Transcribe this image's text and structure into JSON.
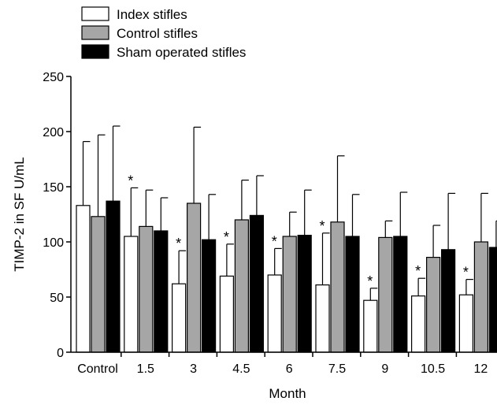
{
  "chart_data": {
    "type": "bar",
    "title": "",
    "xlabel": "Month",
    "ylabel": "TIMP-2 in SF U/mL",
    "ylim": [
      0,
      250
    ],
    "yticks": [
      0,
      50,
      100,
      150,
      200,
      250
    ],
    "categories": [
      "Control",
      "1.5",
      "3",
      "4.5",
      "6",
      "7.5",
      "9",
      "10.5",
      "12"
    ],
    "legend_position": "top-left",
    "grid": false,
    "error_bars": "upper only",
    "series": [
      {
        "name": "Index stifles",
        "color": "#ffffff",
        "values": [
          133,
          105,
          62,
          69,
          70,
          61,
          47,
          51,
          52
        ],
        "errors": [
          58,
          44,
          30,
          29,
          24,
          47,
          11,
          16,
          14
        ],
        "significance": [
          "",
          "*",
          "*",
          "*",
          "*",
          "*",
          "*",
          "*",
          "*"
        ]
      },
      {
        "name": "Control stifles",
        "color": "#a6a6a6",
        "values": [
          123,
          114,
          135,
          120,
          105,
          118,
          104,
          86,
          100
        ],
        "errors": [
          74,
          33,
          69,
          36,
          22,
          60,
          15,
          29,
          44
        ],
        "significance": [
          "",
          "",
          "",
          "",
          "",
          "",
          "",
          "",
          ""
        ]
      },
      {
        "name": "Sham operated stifles",
        "color": "#000000",
        "values": [
          137,
          110,
          102,
          124,
          106,
          105,
          105,
          93,
          95
        ],
        "errors": [
          68,
          30,
          41,
          36,
          41,
          38,
          40,
          51,
          24
        ],
        "significance": [
          "",
          "",
          "",
          "",
          "",
          "",
          "",
          "",
          ""
        ]
      }
    ]
  }
}
